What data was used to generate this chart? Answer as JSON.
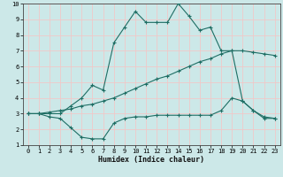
{
  "xlabel": "Humidex (Indice chaleur)",
  "xlim": [
    -0.5,
    23.5
  ],
  "ylim": [
    1,
    10
  ],
  "xticks": [
    0,
    1,
    2,
    3,
    4,
    5,
    6,
    7,
    8,
    9,
    10,
    11,
    12,
    13,
    14,
    15,
    16,
    17,
    18,
    19,
    20,
    21,
    22,
    23
  ],
  "yticks": [
    1,
    2,
    3,
    4,
    5,
    6,
    7,
    8,
    9,
    10
  ],
  "bg_color": "#cce8e8",
  "line_color": "#1e6e64",
  "grid_color": "#f0c8c8",
  "line1_x": [
    0,
    1,
    2,
    3,
    4,
    5,
    6,
    7,
    8,
    9,
    10,
    11,
    12,
    13,
    14,
    15,
    16,
    17,
    18,
    19,
    20,
    21,
    22,
    23
  ],
  "line1_y": [
    3.0,
    3.0,
    3.0,
    3.0,
    3.5,
    4.0,
    4.8,
    4.5,
    7.5,
    8.5,
    9.5,
    8.8,
    8.8,
    8.8,
    10.0,
    9.2,
    8.3,
    8.5,
    7.0,
    7.0,
    3.8,
    3.2,
    2.7,
    2.7
  ],
  "line2_x": [
    0,
    1,
    2,
    3,
    4,
    5,
    6,
    7,
    8,
    9,
    10,
    11,
    12,
    13,
    14,
    15,
    16,
    17,
    18,
    19,
    20,
    21,
    22,
    23
  ],
  "line2_y": [
    3.0,
    3.0,
    3.1,
    3.2,
    3.3,
    3.5,
    3.6,
    3.8,
    4.0,
    4.3,
    4.6,
    4.9,
    5.2,
    5.4,
    5.7,
    6.0,
    6.3,
    6.5,
    6.8,
    7.0,
    7.0,
    6.9,
    6.8,
    6.7
  ],
  "line3_x": [
    0,
    1,
    2,
    3,
    4,
    5,
    6,
    7,
    8,
    9,
    10,
    11,
    12,
    13,
    14,
    15,
    16,
    17,
    18,
    19,
    20,
    21,
    22,
    23
  ],
  "line3_y": [
    3.0,
    3.0,
    2.8,
    2.7,
    2.1,
    1.5,
    1.4,
    1.4,
    2.4,
    2.7,
    2.8,
    2.8,
    2.9,
    2.9,
    2.9,
    2.9,
    2.9,
    2.9,
    3.2,
    4.0,
    3.8,
    3.2,
    2.8,
    2.7
  ]
}
